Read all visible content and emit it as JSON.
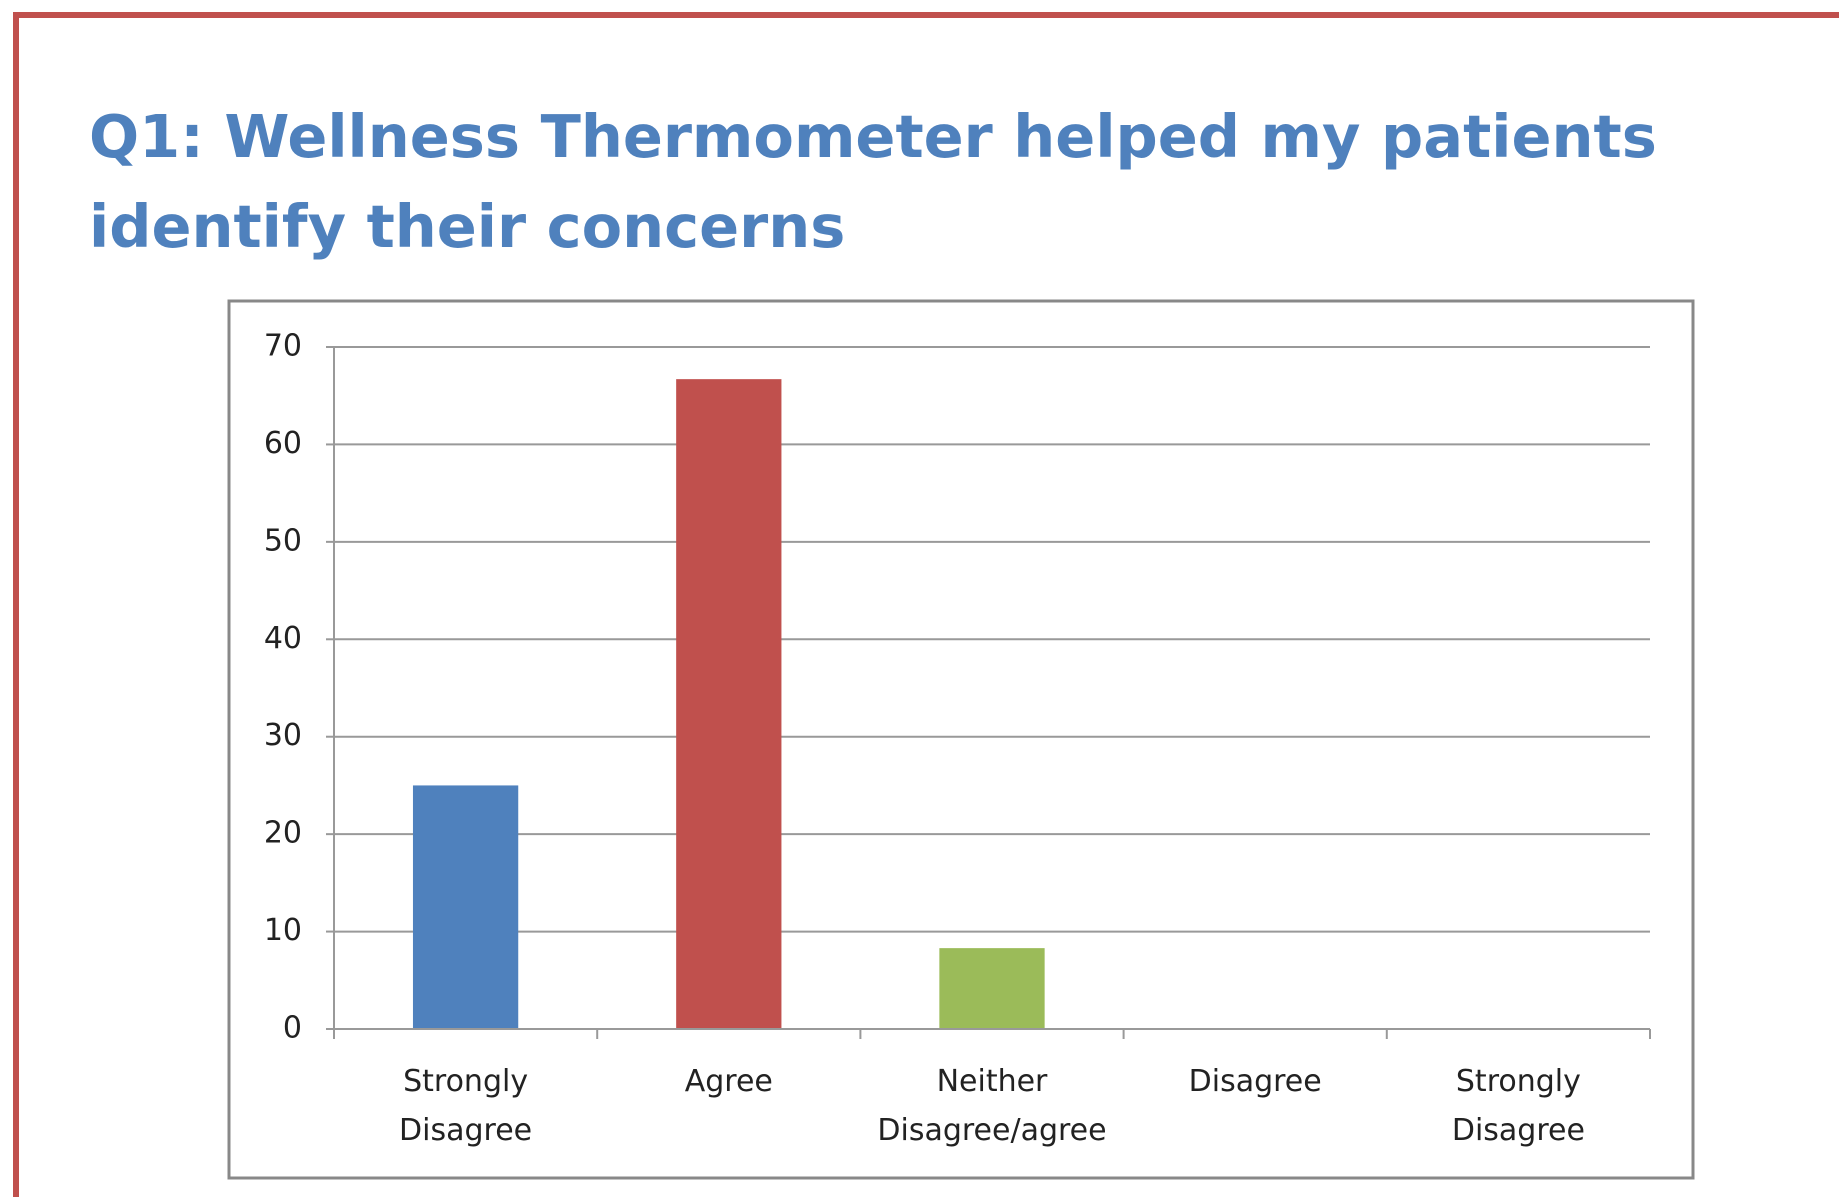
{
  "chart_data": {
    "type": "bar",
    "title": "Q1: Wellness Thermometer helped my patients identify their concerns",
    "categories": [
      "Strongly Disagree",
      "Agree",
      "Neither Disagree/agree",
      "Disagree",
      "Strongly Disagree"
    ],
    "values": [
      25,
      66.7,
      8.3,
      0,
      0
    ],
    "colors": [
      "#4f81bd",
      "#c0504d",
      "#9bbb59",
      "#4f81bd",
      "#4f81bd"
    ],
    "ylim": [
      0,
      70
    ],
    "yticks": [
      0,
      10,
      20,
      30,
      40,
      50,
      60,
      70
    ],
    "grid": true
  }
}
